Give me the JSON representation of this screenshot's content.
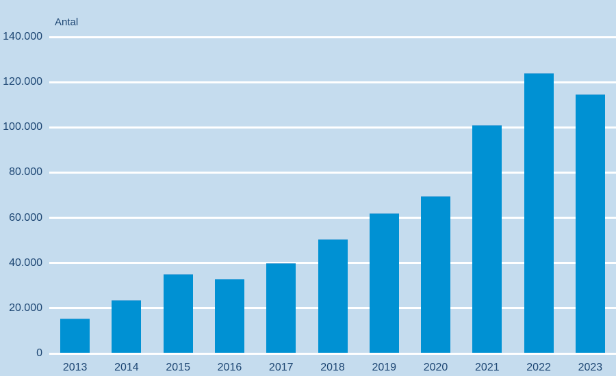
{
  "chart_data": {
    "type": "bar",
    "title": "Antal",
    "categories": [
      "2013",
      "2014",
      "2015",
      "2016",
      "2017",
      "2018",
      "2019",
      "2020",
      "2021",
      "2022",
      "2023"
    ],
    "values": [
      15500,
      23500,
      35000,
      33000,
      40000,
      50500,
      62000,
      69500,
      101000,
      124000,
      114500
    ],
    "xlabel": "",
    "ylabel": "Antal",
    "ylim": [
      0,
      140000
    ],
    "ytick_step": 20000,
    "ytick_labels": [
      "0",
      "20.000",
      "40.000",
      "60.000",
      "80.000",
      "100.000",
      "120.000",
      "140.000"
    ],
    "grid": true,
    "legend_position": "none",
    "colors": {
      "background": "#c5dcee",
      "bar": "#0091d3",
      "bar_edge": "#54a9da",
      "gridline": "#ffffff",
      "text": "#1d4673"
    }
  }
}
